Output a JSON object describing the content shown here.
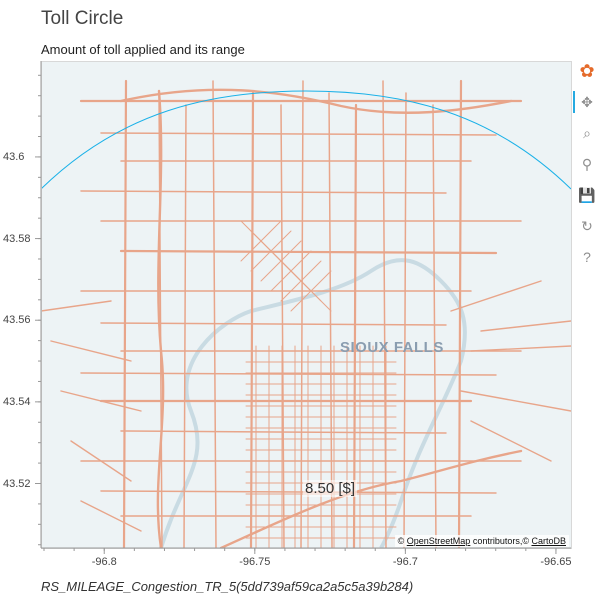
{
  "header": {
    "title": "Toll Circle",
    "subtitle": "Amount of toll applied and its range"
  },
  "map": {
    "city_label": "SIOUX FALLS",
    "toll_label": "8.50 [$]",
    "attribution": {
      "prefix": "©",
      "osm_link": "OpenStreetMap",
      "middle": " contributors,©",
      "carto_link": "CartoDB"
    },
    "road_color": "#e8a58a",
    "circle_color": "#1ab1e8",
    "x_axis": {
      "range": [
        -96.821,
        -96.645
      ],
      "ticks": [
        {
          "value": -96.8,
          "label": "-96.8"
        },
        {
          "value": -96.75,
          "label": "-96.75"
        },
        {
          "value": -96.7,
          "label": "-96.7"
        },
        {
          "value": -96.65,
          "label": "-96.65"
        }
      ]
    },
    "y_axis": {
      "range": [
        43.5042,
        43.6235
      ],
      "ticks": [
        {
          "value": 43.52,
          "label": "43.52"
        },
        {
          "value": 43.54,
          "label": "43.54"
        },
        {
          "value": 43.56,
          "label": "43.56"
        },
        {
          "value": 43.58,
          "label": "43.58"
        },
        {
          "value": 43.6,
          "label": "43.6"
        }
      ]
    }
  },
  "toolbar": {
    "tools": [
      {
        "name": "bokeh-logo",
        "glyph": "✿",
        "active": false
      },
      {
        "name": "pan-tool",
        "glyph": "✥",
        "active": true
      },
      {
        "name": "box-zoom-tool",
        "glyph": "⌕",
        "active": false
      },
      {
        "name": "wheel-zoom-tool",
        "glyph": "⚲",
        "active": false
      },
      {
        "name": "save-tool",
        "glyph": "💾",
        "active": false
      },
      {
        "name": "reset-tool",
        "glyph": "↻",
        "active": false
      },
      {
        "name": "help-tool",
        "glyph": "?",
        "active": false
      }
    ]
  },
  "footer": {
    "text": "RS_MILEAGE_Congestion_TR_5(5dd739af59ca2a5c5a39b284)"
  }
}
